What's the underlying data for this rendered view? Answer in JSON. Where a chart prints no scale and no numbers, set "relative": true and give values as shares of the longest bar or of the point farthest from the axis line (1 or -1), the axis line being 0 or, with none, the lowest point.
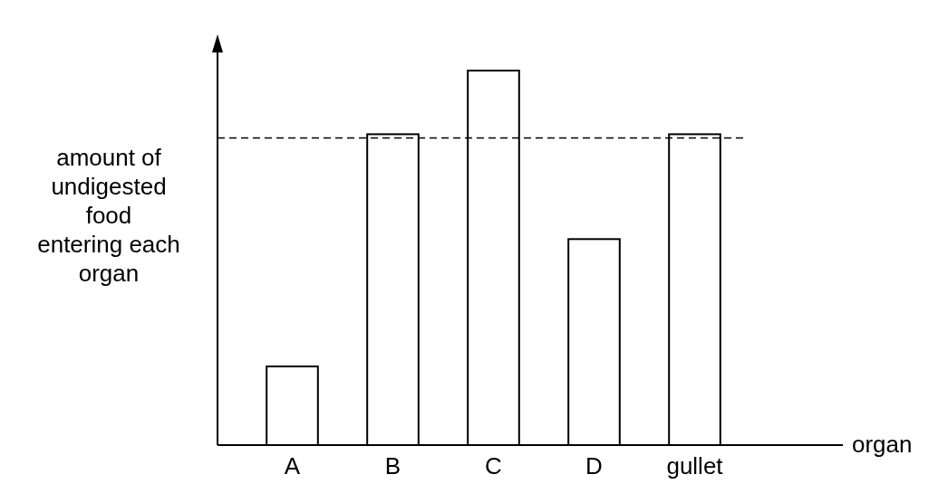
{
  "chart_data": {
    "type": "bar",
    "relative": true,
    "xlabel": "organ",
    "ylabel": "amount of\nundigested\nfood\nentering each\norgan",
    "categories": [
      "A",
      "B",
      "C",
      "D",
      "gullet"
    ],
    "values": [
      0.21,
      0.83,
      1,
      0.55,
      0.83
    ],
    "color": "#ffffff",
    "ref_lines": [
      {
        "axis": "y",
        "value": 0.82,
        "line_style": "dashed",
        "color": "#000000"
      }
    ],
    "legend": false
  }
}
